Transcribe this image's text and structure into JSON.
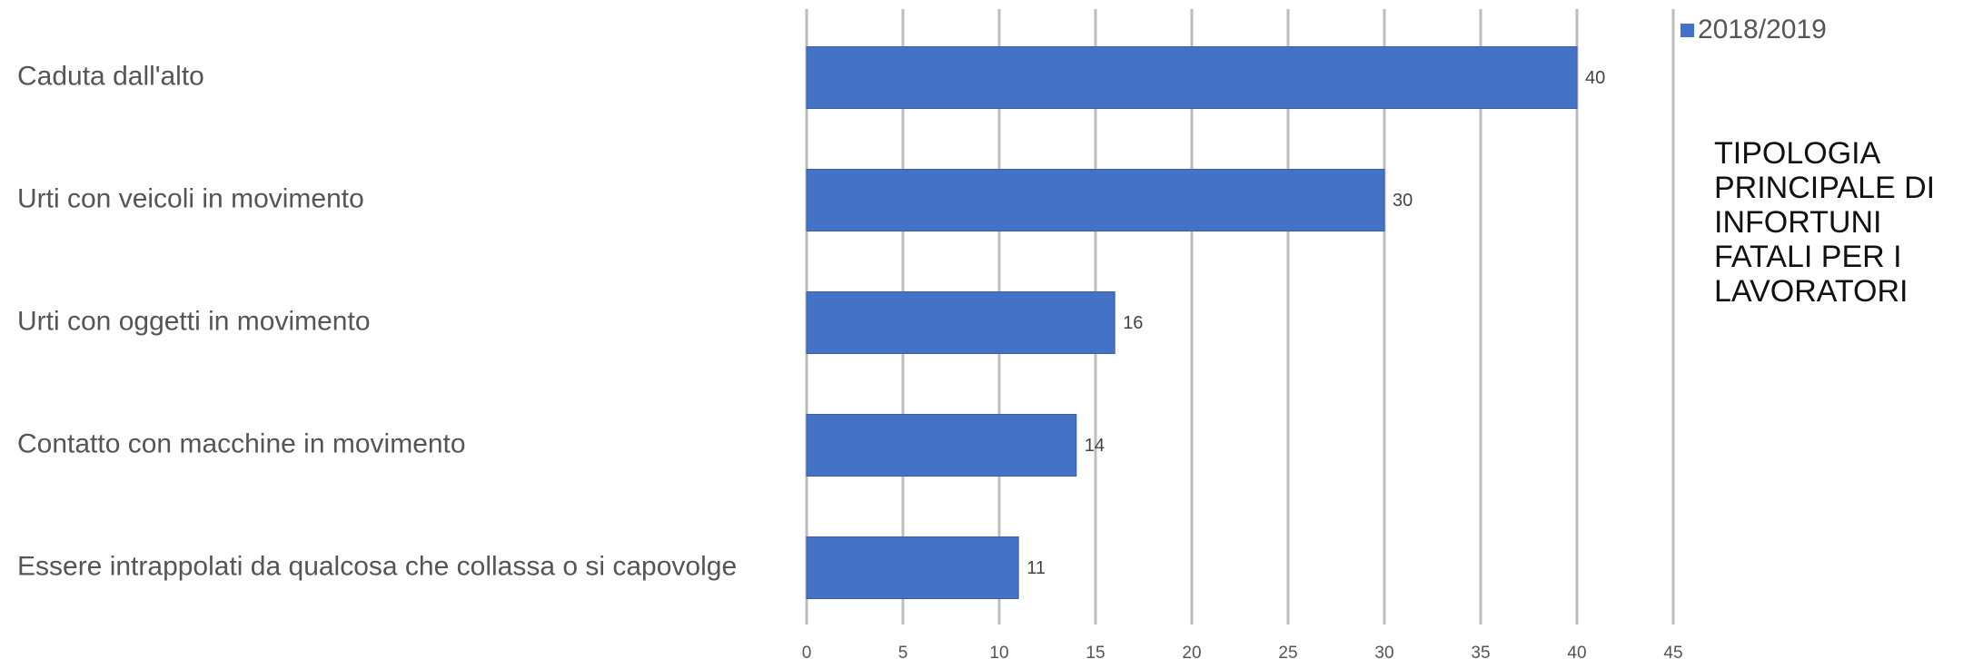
{
  "chart_data": {
    "type": "bar",
    "orientation": "horizontal",
    "title": "TIPOLOGIA\nPRINCIPALE DI\nINFORTUNI\nFATALI PER I\nLAVORATORI",
    "categories": [
      "Caduta dall'alto",
      "Urti con veicoli in movimento",
      "Urti con oggetti in movimento",
      "Contatto con macchine in movimento",
      "Essere intrappolati da qualcosa che collassa o si capovolge"
    ],
    "series": [
      {
        "name": "2018/2019",
        "values": [
          40,
          30,
          16,
          14,
          11
        ],
        "color": "#4472c4"
      }
    ],
    "xlim": [
      0,
      45
    ],
    "x_ticks": [
      0,
      5,
      10,
      15,
      20,
      25,
      30,
      35,
      40,
      45
    ],
    "x_tick_labels": [
      "0",
      "5",
      "10",
      "15",
      "20",
      "25",
      "30",
      "35",
      "40",
      "45"
    ],
    "grid": true,
    "legend": "top-right",
    "xlabel": "",
    "ylabel": ""
  }
}
